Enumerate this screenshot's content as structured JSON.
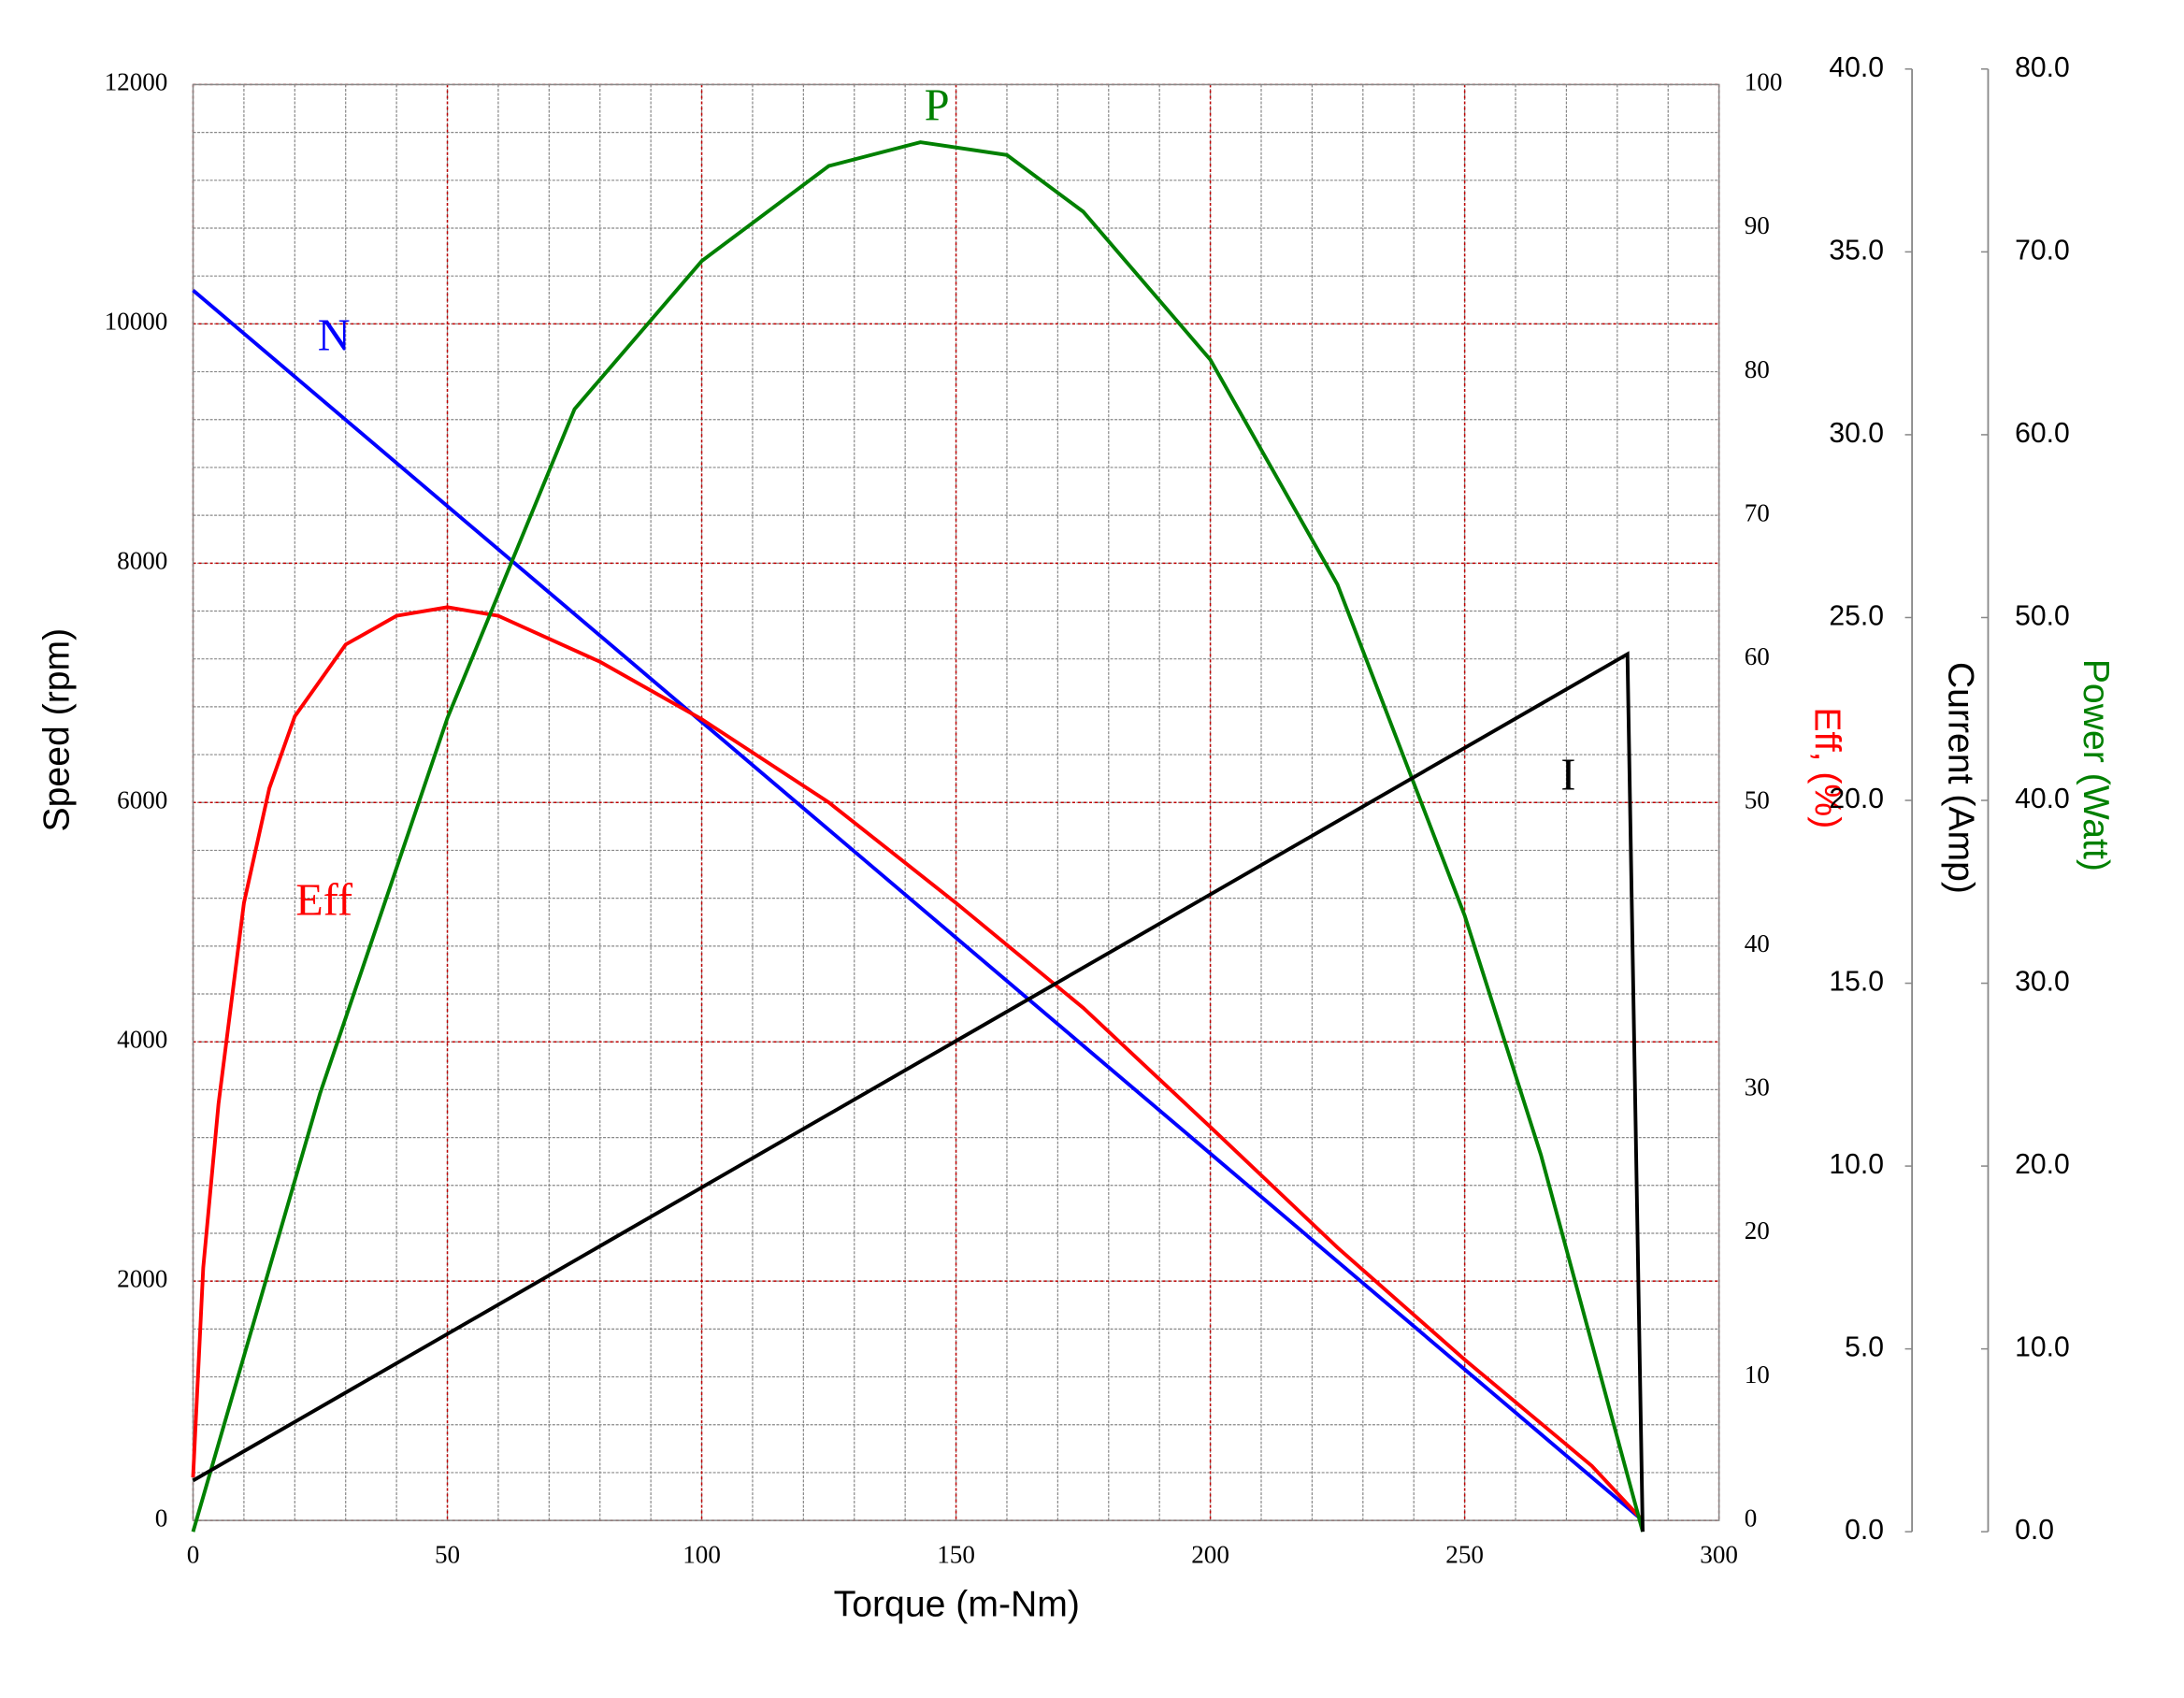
{
  "chart_data": {
    "type": "line",
    "xlabel": "Torque (m-Nm)",
    "ylabel": "Speed (rpm)",
    "y2label": "Eff, (%)",
    "y3label": "Current (Amp)",
    "y4label": "Power (Watt)",
    "xlim": [
      0,
      300
    ],
    "xticks": [
      0,
      50,
      100,
      150,
      200,
      250,
      300
    ],
    "ylim": [
      0,
      12000
    ],
    "yticks": [
      0,
      2000,
      4000,
      6000,
      8000,
      10000,
      12000
    ],
    "y2lim": [
      0,
      100
    ],
    "y2ticks": [
      0,
      10,
      20,
      30,
      40,
      50,
      60,
      70,
      80,
      90,
      100
    ],
    "y3lim": [
      0,
      40
    ],
    "y3ticks": [
      {
        "value": 0,
        "label": "0.0"
      },
      {
        "value": 5,
        "label": "5.0"
      },
      {
        "value": 10,
        "label": "10.0"
      },
      {
        "value": 15,
        "label": "15.0"
      },
      {
        "value": 20,
        "label": "20.0"
      },
      {
        "value": 25,
        "label": "25.0"
      },
      {
        "value": 30,
        "label": "30.0"
      },
      {
        "value": 35,
        "label": "35.0"
      },
      {
        "value": 40,
        "label": "40.0"
      }
    ],
    "y4lim": [
      0,
      80
    ],
    "y4ticks": [
      {
        "value": 0,
        "label": "0.0"
      },
      {
        "value": 10,
        "label": "10.0"
      },
      {
        "value": 20,
        "label": "20.0"
      },
      {
        "value": 30,
        "label": "30.0"
      },
      {
        "value": 40,
        "label": "40.0"
      },
      {
        "value": 50,
        "label": "50.0"
      },
      {
        "value": 60,
        "label": "60.0"
      },
      {
        "value": 70,
        "label": "70.0"
      },
      {
        "value": 80,
        "label": "80.0"
      }
    ],
    "grid": true,
    "minor_grid": {
      "x": 10,
      "y": 400
    },
    "series": [
      {
        "name": "N",
        "color": "#0000ff",
        "axis": "y",
        "x": [
          0,
          285
        ],
        "values": [
          10280,
          0
        ]
      },
      {
        "name": "Eff",
        "color": "#ff0000",
        "axis": "y2",
        "x": [
          0,
          2,
          5,
          10,
          15,
          20,
          30,
          40,
          50,
          60,
          80,
          100,
          125,
          150,
          175,
          200,
          225,
          250,
          275,
          285
        ],
        "values": [
          3,
          17.6,
          29,
          43,
          51,
          56,
          61,
          63,
          63.6,
          63,
          59.8,
          55.8,
          50,
          43,
          35.7,
          27.4,
          19,
          11.2,
          3.8,
          0
        ]
      },
      {
        "name": "P",
        "color": "#008000",
        "axis": "y4",
        "x": [
          0,
          25,
          50,
          75,
          100,
          125,
          143,
          160,
          175,
          200,
          225,
          250,
          265,
          285
        ],
        "values": [
          0,
          24,
          44.5,
          61.4,
          69.5,
          74.7,
          76,
          75.3,
          72.2,
          64.1,
          51.8,
          33.7,
          20.6,
          0
        ]
      },
      {
        "name": "I",
        "color": "#000000",
        "axis": "y3",
        "x": [
          0,
          282,
          285
        ],
        "values": [
          1.4,
          24,
          0
        ]
      }
    ]
  }
}
